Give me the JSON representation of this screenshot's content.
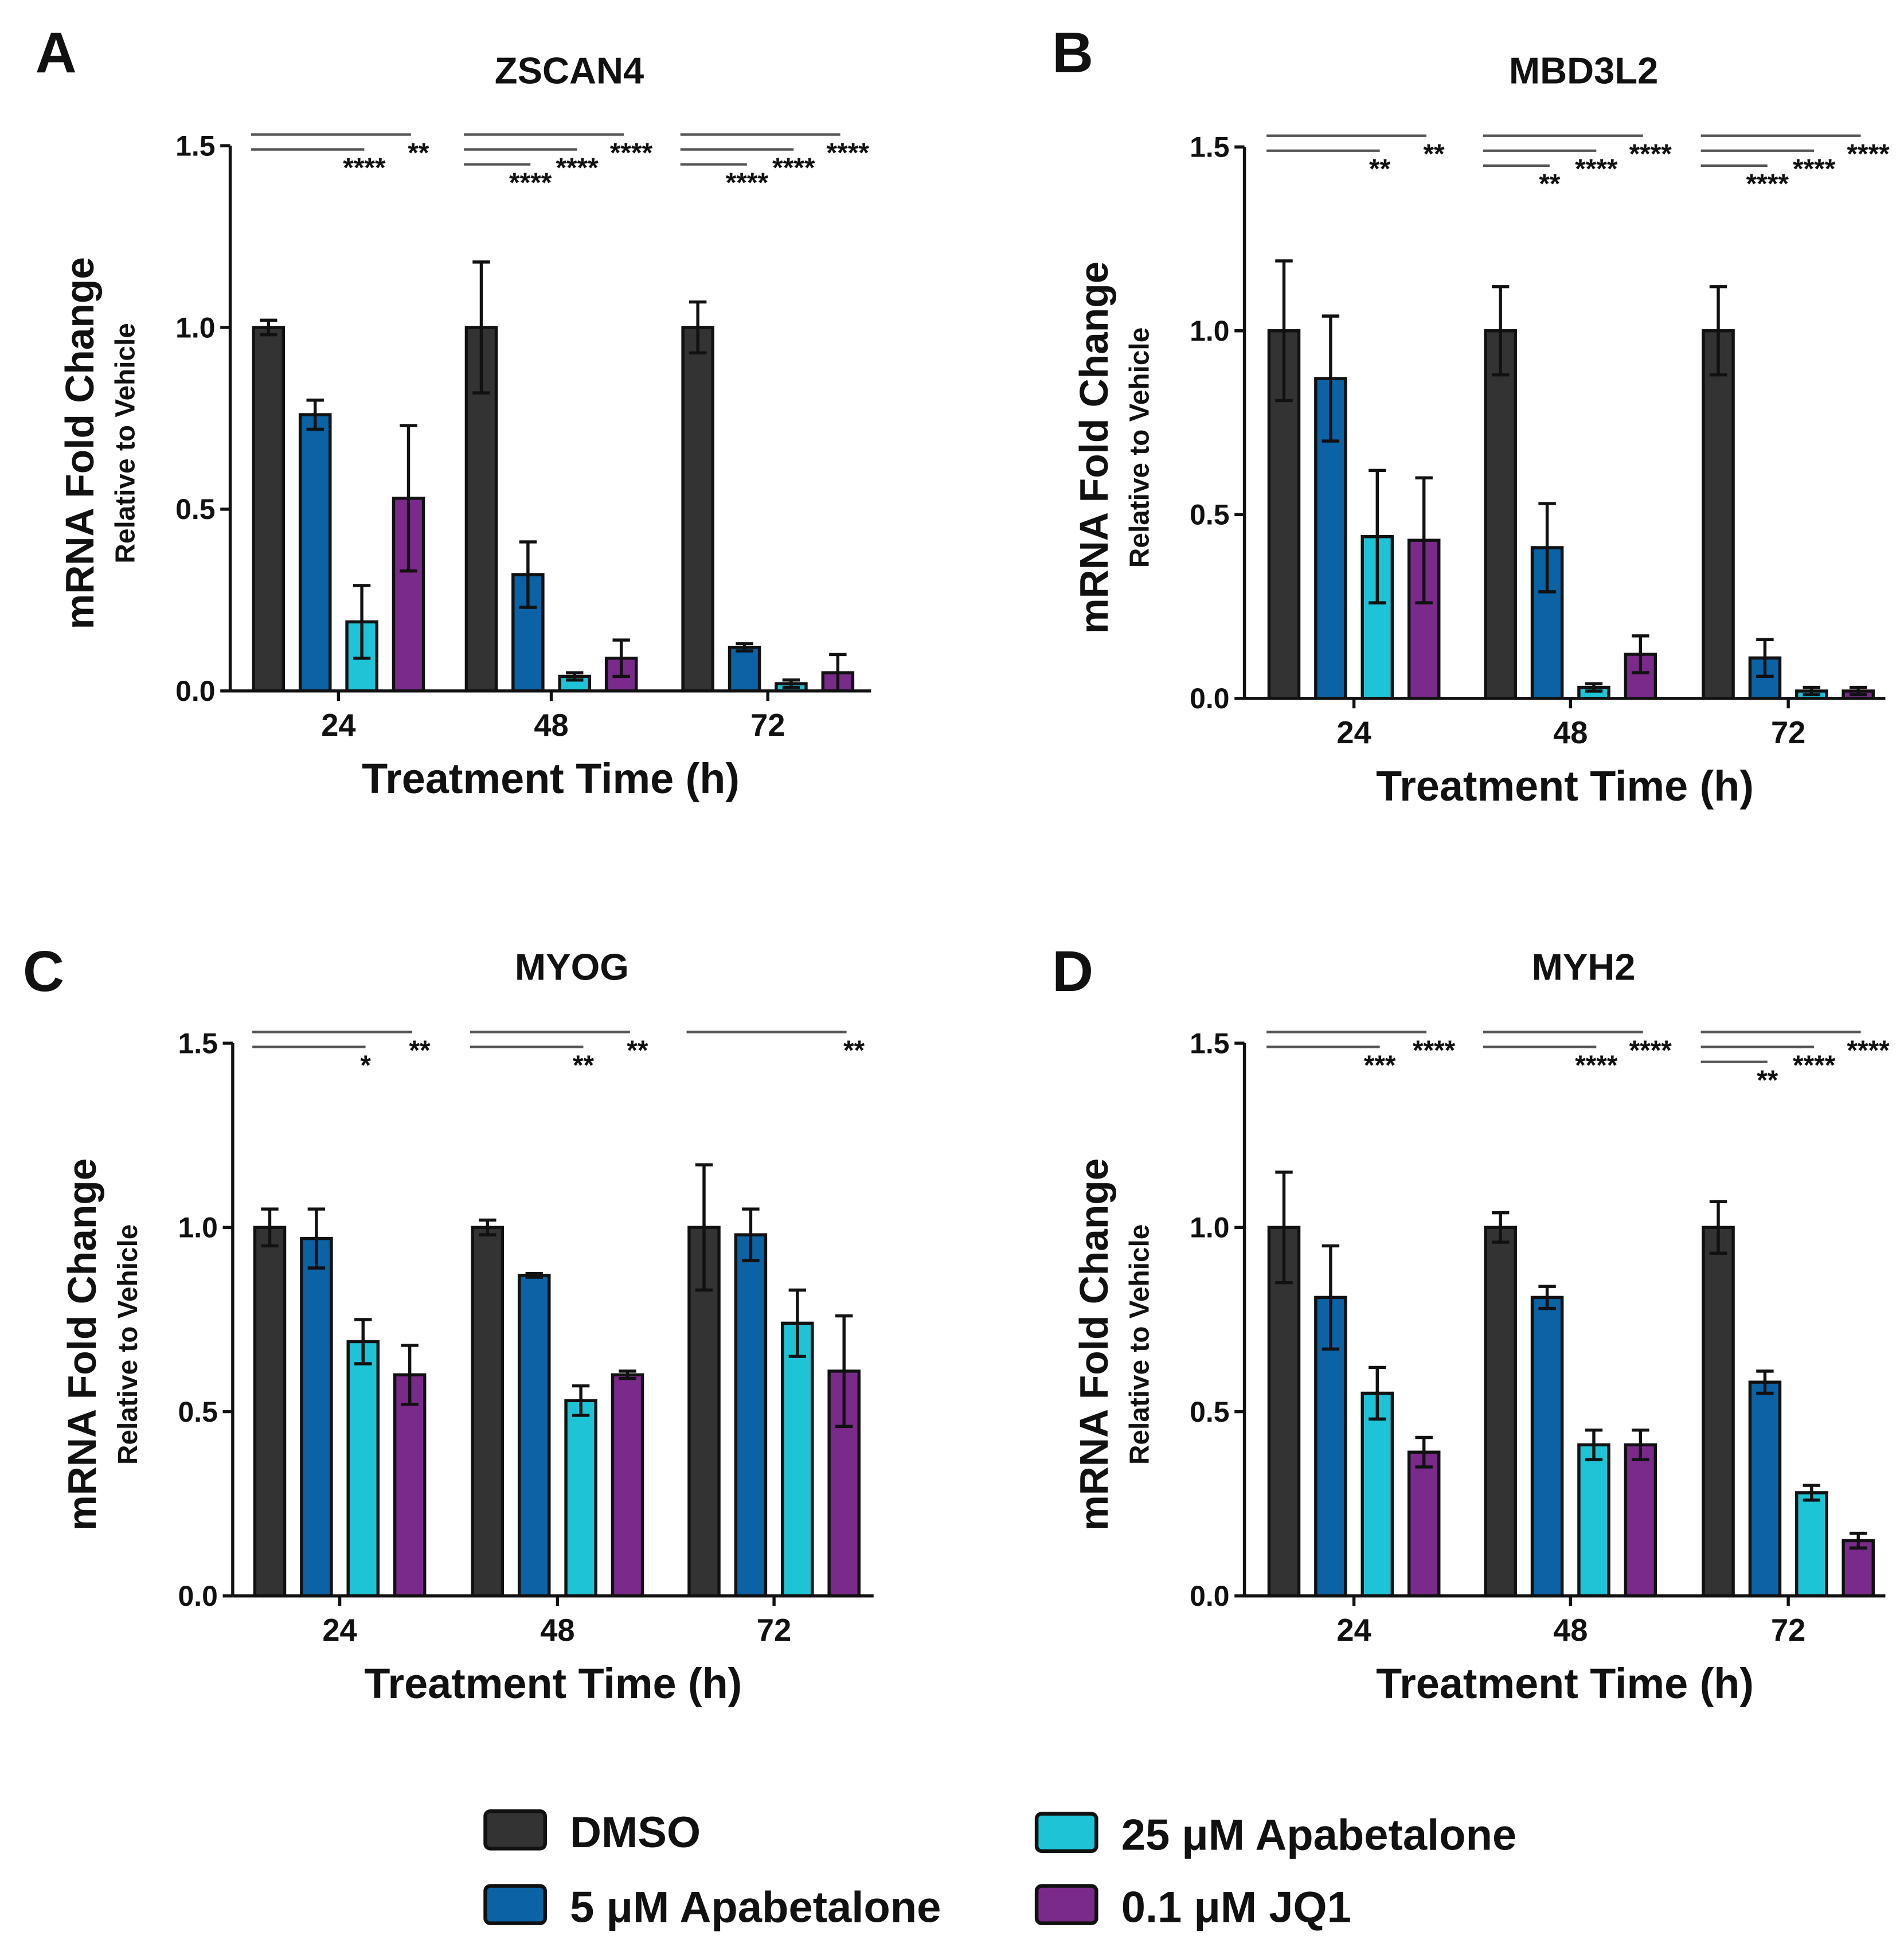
{
  "colors": {
    "DMSO": "#333333",
    "5uM": "#0b62a4",
    "25uM": "#1fc3d6",
    "JQ1": "#7a2a8a"
  },
  "legend": [
    {
      "label": "DMSO",
      "color_key": "DMSO"
    },
    {
      "label": "5 μM Apabetalone",
      "color_key": "5uM"
    },
    {
      "label": "25 μM Apabetalone",
      "color_key": "25uM"
    },
    {
      "label": "0.1 μM JQ1",
      "color_key": "JQ1"
    }
  ],
  "chart_data": [
    {
      "panel": "A",
      "type": "bar",
      "title": "ZSCAN4",
      "xlabel": "Treatment Time (h)",
      "ylabel": "mRNA Fold Change",
      "ylabel2": "Relative to Vehicle",
      "ylim": [
        0,
        1.5
      ],
      "yticks": [
        "0.0",
        "0.5",
        "1.0",
        "1.5"
      ],
      "categories": [
        "24",
        "48",
        "72"
      ],
      "series": [
        {
          "name": "DMSO",
          "values": [
            1.0,
            1.0,
            1.0
          ],
          "errors": [
            0.02,
            0.18,
            0.07
          ]
        },
        {
          "name": "5 μM Apabetalone",
          "values": [
            0.76,
            0.32,
            0.12
          ],
          "errors": [
            0.04,
            0.09,
            0.01
          ]
        },
        {
          "name": "25 μM Apabetalone",
          "values": [
            0.19,
            0.04,
            0.02
          ],
          "errors": [
            0.1,
            0.01,
            0.01
          ]
        },
        {
          "name": "0.1 μM JQ1",
          "values": [
            0.53,
            0.09,
            0.05
          ],
          "errors": [
            0.2,
            0.05,
            0.05
          ]
        }
      ],
      "significance": [
        [
          {
            "vs": 3,
            "stars": "**"
          },
          {
            "vs": 2,
            "stars": "****"
          }
        ],
        [
          {
            "vs": 3,
            "stars": "****"
          },
          {
            "vs": 2,
            "stars": "****"
          },
          {
            "vs": 1,
            "stars": "****"
          }
        ],
        [
          {
            "vs": 3,
            "stars": "****"
          },
          {
            "vs": 2,
            "stars": "****"
          },
          {
            "vs": 1,
            "stars": "****"
          }
        ]
      ]
    },
    {
      "panel": "B",
      "type": "bar",
      "title": "MBD3L2",
      "xlabel": "Treatment Time (h)",
      "ylabel": "mRNA Fold Change",
      "ylabel2": "Relative to Vehicle",
      "ylim": [
        0,
        1.5
      ],
      "yticks": [
        "0.0",
        "0.5",
        "1.0",
        "1.5"
      ],
      "categories": [
        "24",
        "48",
        "72"
      ],
      "series": [
        {
          "name": "DMSO",
          "values": [
            1.0,
            1.0,
            1.0
          ],
          "errors": [
            0.19,
            0.12,
            0.12
          ]
        },
        {
          "name": "5 μM Apabetalone",
          "values": [
            0.87,
            0.41,
            0.11
          ],
          "errors": [
            0.17,
            0.12,
            0.05
          ]
        },
        {
          "name": "25 μM Apabetalone",
          "values": [
            0.44,
            0.03,
            0.02
          ],
          "errors": [
            0.18,
            0.01,
            0.01
          ]
        },
        {
          "name": "0.1 μM JQ1",
          "values": [
            0.43,
            0.12,
            0.02
          ],
          "errors": [
            0.17,
            0.05,
            0.01
          ]
        }
      ],
      "significance": [
        [
          {
            "vs": 3,
            "stars": "**"
          },
          {
            "vs": 2,
            "stars": "**"
          }
        ],
        [
          {
            "vs": 3,
            "stars": "****"
          },
          {
            "vs": 2,
            "stars": "****"
          },
          {
            "vs": 1,
            "stars": "**"
          }
        ],
        [
          {
            "vs": 3,
            "stars": "****"
          },
          {
            "vs": 2,
            "stars": "****"
          },
          {
            "vs": 1,
            "stars": "****"
          }
        ]
      ]
    },
    {
      "panel": "C",
      "type": "bar",
      "title": "MYOG",
      "xlabel": "Treatment Time (h)",
      "ylabel": "mRNA Fold Change",
      "ylabel2": "Relative to Vehicle",
      "ylim": [
        0,
        1.5
      ],
      "yticks": [
        "0.0",
        "0.5",
        "1.0",
        "1.5"
      ],
      "categories": [
        "24",
        "48",
        "72"
      ],
      "series": [
        {
          "name": "DMSO",
          "values": [
            1.0,
            1.0,
            1.0
          ],
          "errors": [
            0.05,
            0.02,
            0.17
          ]
        },
        {
          "name": "5 μM Apabetalone",
          "values": [
            0.97,
            0.87,
            0.98
          ],
          "errors": [
            0.08,
            0.005,
            0.07
          ]
        },
        {
          "name": "25 μM Apabetalone",
          "values": [
            0.69,
            0.53,
            0.74
          ],
          "errors": [
            0.06,
            0.04,
            0.09
          ]
        },
        {
          "name": "0.1 μM JQ1",
          "values": [
            0.6,
            0.6,
            0.61
          ],
          "errors": [
            0.08,
            0.01,
            0.15
          ]
        }
      ],
      "significance": [
        [
          {
            "vs": 3,
            "stars": "**"
          },
          {
            "vs": 2,
            "stars": "*"
          }
        ],
        [
          {
            "vs": 3,
            "stars": "**"
          },
          {
            "vs": 2,
            "stars": "**"
          }
        ],
        [
          {
            "vs": 3,
            "stars": "**"
          }
        ]
      ]
    },
    {
      "panel": "D",
      "type": "bar",
      "title": "MYH2",
      "xlabel": "Treatment Time (h)",
      "ylabel": "mRNA Fold Change",
      "ylabel2": "Relative to Vehicle",
      "ylim": [
        0,
        1.5
      ],
      "yticks": [
        "0.0",
        "0.5",
        "1.0",
        "1.5"
      ],
      "categories": [
        "24",
        "48",
        "72"
      ],
      "series": [
        {
          "name": "DMSO",
          "values": [
            1.0,
            1.0,
            1.0
          ],
          "errors": [
            0.15,
            0.04,
            0.07
          ]
        },
        {
          "name": "5 μM Apabetalone",
          "values": [
            0.81,
            0.81,
            0.58
          ],
          "errors": [
            0.14,
            0.03,
            0.03
          ]
        },
        {
          "name": "25 μM Apabetalone",
          "values": [
            0.55,
            0.41,
            0.28
          ],
          "errors": [
            0.07,
            0.04,
            0.02
          ]
        },
        {
          "name": "0.1 μM JQ1",
          "values": [
            0.39,
            0.41,
            0.15
          ],
          "errors": [
            0.04,
            0.04,
            0.02
          ]
        }
      ],
      "significance": [
        [
          {
            "vs": 3,
            "stars": "****"
          },
          {
            "vs": 2,
            "stars": "***"
          }
        ],
        [
          {
            "vs": 3,
            "stars": "****"
          },
          {
            "vs": 2,
            "stars": "****"
          }
        ],
        [
          {
            "vs": 3,
            "stars": "****"
          },
          {
            "vs": 2,
            "stars": "****"
          },
          {
            "vs": 1,
            "stars": "**"
          }
        ]
      ]
    }
  ]
}
